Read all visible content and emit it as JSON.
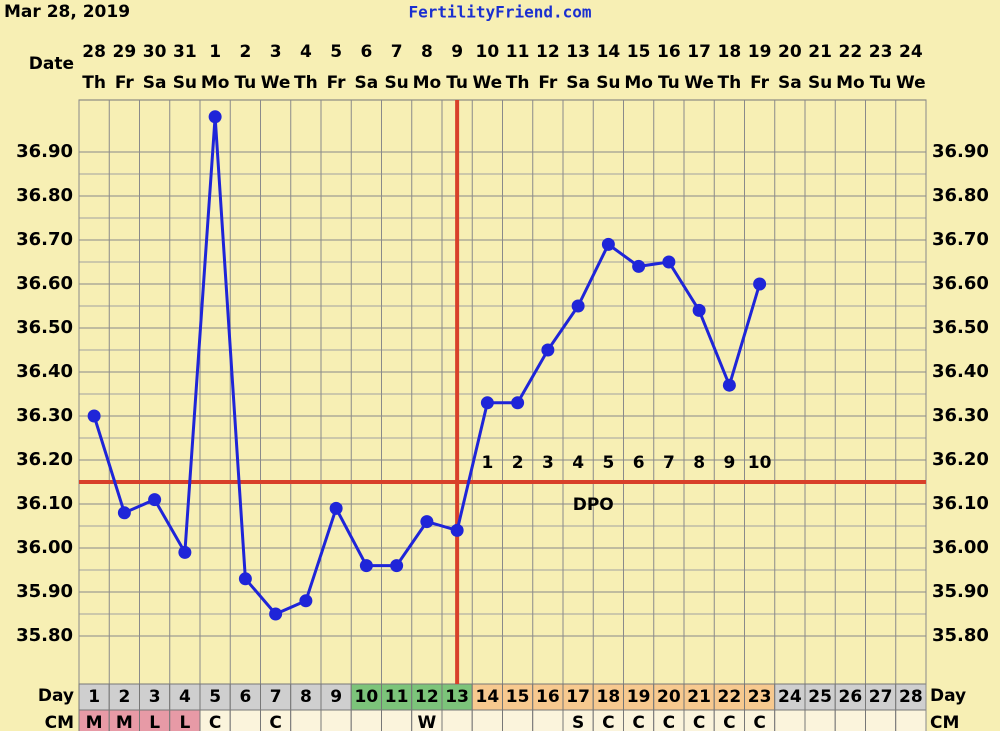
{
  "header": {
    "date": "Mar 28, 2019",
    "site": "FertilityFriend.com"
  },
  "chart_data": {
    "type": "line",
    "row_labels": {
      "date": "Date",
      "day": "Day",
      "cm": "CM"
    },
    "dates": [
      "28",
      "29",
      "30",
      "31",
      "1",
      "2",
      "3",
      "4",
      "5",
      "6",
      "7",
      "8",
      "9",
      "10",
      "11",
      "12",
      "13",
      "14",
      "15",
      "16",
      "17",
      "18",
      "19",
      "20",
      "21",
      "22",
      "23",
      "24"
    ],
    "weekdays": [
      "Th",
      "Fr",
      "Sa",
      "Su",
      "Mo",
      "Tu",
      "We",
      "Th",
      "Fr",
      "Sa",
      "Su",
      "Mo",
      "Tu",
      "We",
      "Th",
      "Fr",
      "Sa",
      "Su",
      "Mo",
      "Tu",
      "We",
      "Th",
      "Fr",
      "Sa",
      "Su",
      "Mo",
      "Tu",
      "We"
    ],
    "cycle_days": [
      1,
      2,
      3,
      4,
      5,
      6,
      7,
      8,
      9,
      10,
      11,
      12,
      13,
      14,
      15,
      16,
      17,
      18,
      19,
      20,
      21,
      22,
      23,
      24,
      25,
      26,
      27,
      28
    ],
    "day_colors": [
      "#cfcfcf",
      "#cfcfcf",
      "#cfcfcf",
      "#cfcfcf",
      "#cfcfcf",
      "#cfcfcf",
      "#cfcfcf",
      "#cfcfcf",
      "#cfcfcf",
      "#7cc47a",
      "#7cc47a",
      "#7cc47a",
      "#7cc47a",
      "#f7c98f",
      "#f7c98f",
      "#f7c98f",
      "#f7c98f",
      "#f7c98f",
      "#f7c98f",
      "#f7c98f",
      "#f7c98f",
      "#f7c98f",
      "#f7c98f",
      "#cfcfcf",
      "#cfcfcf",
      "#cfcfcf",
      "#cfcfcf",
      "#cfcfcf"
    ],
    "cm": [
      "M",
      "M",
      "L",
      "L",
      "C",
      null,
      "C",
      null,
      null,
      null,
      null,
      "W",
      null,
      null,
      null,
      null,
      "S",
      "C",
      "C",
      "C",
      "C",
      "C",
      "C",
      null,
      null,
      null,
      null,
      null
    ],
    "cm_colors": {
      "M": "#e79aa6",
      "L": "#e79aa6"
    },
    "series": [
      {
        "color": "#1f25d8",
        "values": [
          36.3,
          36.08,
          36.11,
          35.99,
          36.98,
          35.93,
          35.85,
          35.88,
          36.09,
          35.96,
          35.96,
          36.06,
          36.04,
          36.33,
          36.33,
          36.45,
          36.55,
          36.69,
          36.64,
          36.65,
          36.54,
          36.37,
          36.6,
          null,
          null,
          null,
          null,
          null
        ]
      }
    ],
    "coverline": 36.15,
    "ovulation_day": 13,
    "dpo": [
      1,
      2,
      3,
      4,
      5,
      6,
      7,
      8,
      9,
      10
    ],
    "dpo_label": "DPO",
    "marker_line_color": "#d8402a",
    "ylim": [
      35.7,
      37.0
    ],
    "yticks": [
      {
        "value": 35.8,
        "label": "35.80"
      },
      {
        "value": 35.9,
        "label": "35.90"
      },
      {
        "value": 36.0,
        "label": "36.00"
      },
      {
        "value": 36.1,
        "label": "36.10"
      },
      {
        "value": 36.2,
        "label": "36.20"
      },
      {
        "value": 36.3,
        "label": "36.30"
      },
      {
        "value": 36.4,
        "label": "36.40"
      },
      {
        "value": 36.5,
        "label": "36.50"
      },
      {
        "value": 36.6,
        "label": "36.60"
      },
      {
        "value": 36.7,
        "label": "36.70"
      },
      {
        "value": 36.8,
        "label": "36.80"
      },
      {
        "value": 36.9,
        "label": "36.90"
      }
    ],
    "grid": true
  }
}
